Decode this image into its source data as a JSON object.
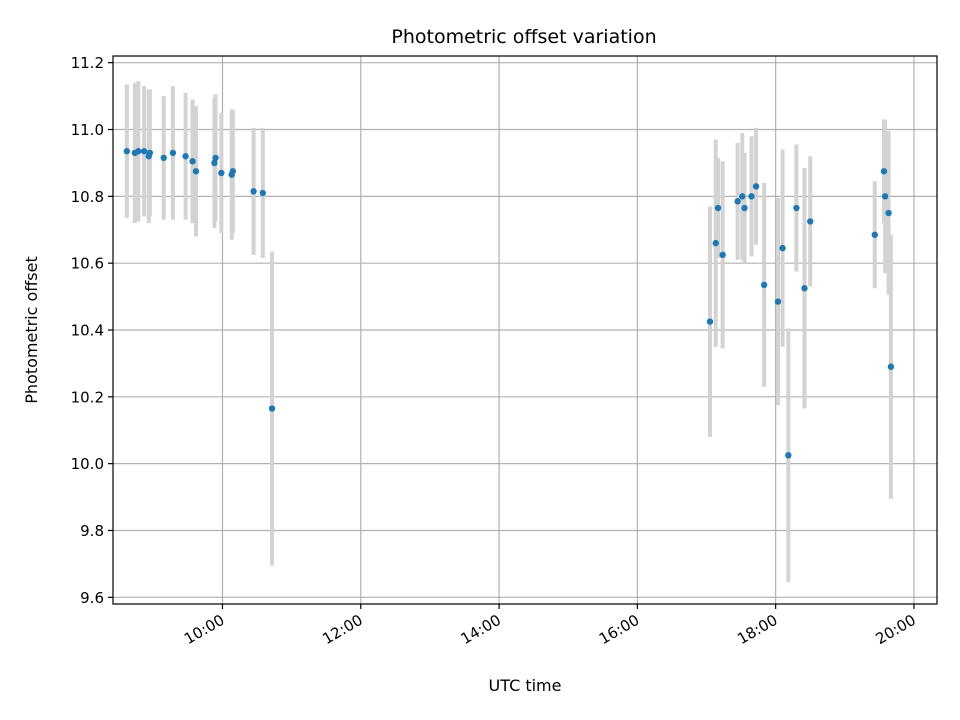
{
  "chart_data": {
    "type": "scatter",
    "title": "Photometric offset variation",
    "xlabel": "UTC time",
    "ylabel": "Photometric offset",
    "x_ticks": [
      "10:00",
      "12:00",
      "14:00",
      "16:00",
      "18:00",
      "20:00"
    ],
    "y_ticks": [
      "9.6",
      "9.8",
      "10.0",
      "10.2",
      "10.4",
      "10.6",
      "10.8",
      "11.0",
      "11.2"
    ],
    "xlim": [
      "08:25",
      "20:20"
    ],
    "ylim": [
      9.58,
      11.22
    ],
    "grid": true,
    "colors": {
      "point": "#1f77b4",
      "errorbar": "#d3d3d3",
      "grid": "#b0b0b0"
    },
    "series": [
      {
        "points": [
          {
            "x": "08:37",
            "y": 10.935,
            "err": 0.2
          },
          {
            "x": "08:44",
            "y": 10.93,
            "err": 0.21
          },
          {
            "x": "08:47",
            "y": 10.935,
            "err": 0.21
          },
          {
            "x": "08:52",
            "y": 10.935,
            "err": 0.195
          },
          {
            "x": "08:56",
            "y": 10.92,
            "err": 0.2
          },
          {
            "x": "08:57",
            "y": 10.93,
            "err": 0.19
          },
          {
            "x": "09:09",
            "y": 10.915,
            "err": 0.185
          },
          {
            "x": "09:17",
            "y": 10.93,
            "err": 0.2
          },
          {
            "x": "09:28",
            "y": 10.92,
            "err": 0.19
          },
          {
            "x": "09:34",
            "y": 10.905,
            "err": 0.185
          },
          {
            "x": "09:37",
            "y": 10.875,
            "err": 0.195
          },
          {
            "x": "09:53",
            "y": 10.9,
            "err": 0.195
          },
          {
            "x": "09:54",
            "y": 10.915,
            "err": 0.19
          },
          {
            "x": "09:59",
            "y": 10.87,
            "err": 0.18
          },
          {
            "x": "10:08",
            "y": 10.865,
            "err": 0.195
          },
          {
            "x": "10:09",
            "y": 10.875,
            "err": 0.185
          },
          {
            "x": "10:27",
            "y": 10.815,
            "err": 0.19
          },
          {
            "x": "10:35",
            "y": 10.81,
            "err": 0.195
          },
          {
            "x": "10:43",
            "y": 10.165,
            "err": 0.47
          },
          {
            "x": "17:03",
            "y": 10.425,
            "err": 0.345
          },
          {
            "x": "17:08",
            "y": 10.66,
            "err": 0.31
          },
          {
            "x": "17:10",
            "y": 10.765,
            "err": 0.15
          },
          {
            "x": "17:14",
            "y": 10.625,
            "err": 0.28
          },
          {
            "x": "17:27",
            "y": 10.785,
            "err": 0.175
          },
          {
            "x": "17:31",
            "y": 10.8,
            "err": 0.19
          },
          {
            "x": "17:33",
            "y": 10.765,
            "err": 0.165
          },
          {
            "x": "17:39",
            "y": 10.8,
            "err": 0.18
          },
          {
            "x": "17:43",
            "y": 10.83,
            "err": 0.175
          },
          {
            "x": "17:50",
            "y": 10.535,
            "err": 0.305
          },
          {
            "x": "18:02",
            "y": 10.485,
            "err": 0.31
          },
          {
            "x": "18:06",
            "y": 10.645,
            "err": 0.295
          },
          {
            "x": "18:11",
            "y": 10.025,
            "err": 0.38
          },
          {
            "x": "18:18",
            "y": 10.765,
            "err": 0.19
          },
          {
            "x": "18:25",
            "y": 10.525,
            "err": 0.36
          },
          {
            "x": "18:30",
            "y": 10.725,
            "err": 0.195
          },
          {
            "x": "19:26",
            "y": 10.685,
            "err": 0.16
          },
          {
            "x": "19:34",
            "y": 10.875,
            "err": 0.155
          },
          {
            "x": "19:35",
            "y": 10.8,
            "err": 0.23
          },
          {
            "x": "19:38",
            "y": 10.75,
            "err": 0.245
          },
          {
            "x": "19:40",
            "y": 10.29,
            "err": 0.395
          }
        ]
      }
    ]
  }
}
